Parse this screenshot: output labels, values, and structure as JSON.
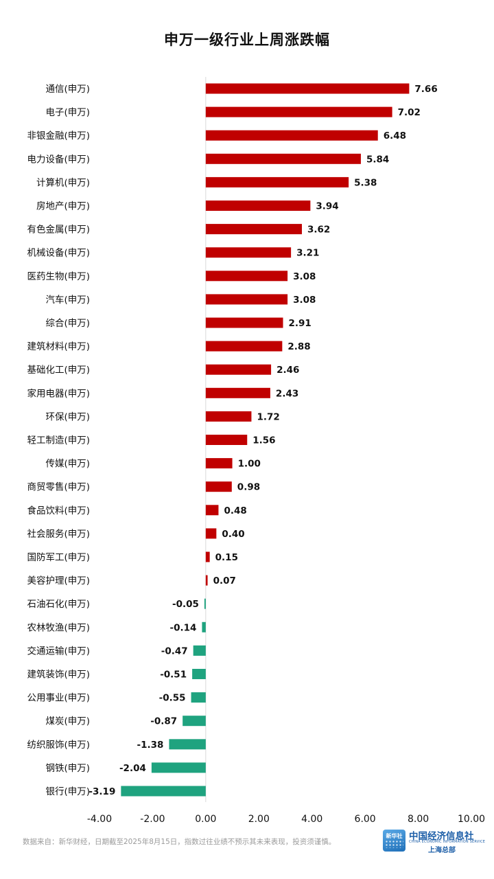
{
  "chart_data": {
    "type": "bar",
    "orientation": "horizontal",
    "title": "申万一级行业上周涨跌幅",
    "categories": [
      "通信(申万)",
      "电子(申万)",
      "非银金融(申万)",
      "电力设备(申万)",
      "计算机(申万)",
      "房地产(申万)",
      "有色金属(申万)",
      "机械设备(申万)",
      "医药生物(申万)",
      "汽车(申万)",
      "综合(申万)",
      "建筑材料(申万)",
      "基础化工(申万)",
      "家用电器(申万)",
      "环保(申万)",
      "轻工制造(申万)",
      "传媒(申万)",
      "商贸零售(申万)",
      "食品饮料(申万)",
      "社会服务(申万)",
      "国防军工(申万)",
      "美容护理(申万)",
      "石油石化(申万)",
      "农林牧渔(申万)",
      "交通运输(申万)",
      "建筑装饰(申万)",
      "公用事业(申万)",
      "煤炭(申万)",
      "纺织服饰(申万)",
      "钢铁(申万)",
      "银行(申万)"
    ],
    "values": [
      7.66,
      7.02,
      6.48,
      5.84,
      5.38,
      3.94,
      3.62,
      3.21,
      3.08,
      3.08,
      2.91,
      2.88,
      2.46,
      2.43,
      1.72,
      1.56,
      1.0,
      0.98,
      0.48,
      0.4,
      0.15,
      0.07,
      -0.05,
      -0.14,
      -0.47,
      -0.51,
      -0.55,
      -0.87,
      -1.38,
      -2.04,
      -3.19
    ],
    "value_labels": [
      "7.66",
      "7.02",
      "6.48",
      "5.84",
      "5.38",
      "3.94",
      "3.62",
      "3.21",
      "3.08",
      "3.08",
      "2.91",
      "2.88",
      "2.46",
      "2.43",
      "1.72",
      "1.56",
      "1.00",
      "0.98",
      "0.48",
      "0.40",
      "0.15",
      "0.07",
      "-0.05",
      "-0.14",
      "-0.47",
      "-0.51",
      "-0.55",
      "-0.87",
      "-1.38",
      "-2.04",
      "-3.19"
    ],
    "xlim": [
      -4,
      10
    ],
    "xticks": [
      "-4.00",
      "-2.00",
      "0.00",
      "2.00",
      "4.00",
      "6.00",
      "8.00",
      "10.00"
    ],
    "xtick_values": [
      -4,
      -2,
      0,
      2,
      4,
      6,
      8,
      10
    ],
    "grid": false,
    "colors": {
      "positive": "#c00000",
      "negative": "#1fa37f"
    }
  },
  "footer": {
    "note": "数据来自：新华财经，日期截至2025年8月15日，指数过往业绩不预示其未来表现，投资须谨慎。"
  },
  "logo": {
    "xinhua_text": "新华社",
    "cei_cn": "中国经济信息社",
    "cei_en": "CHINA ECONOMIC INFORMATION SERVICE",
    "cei_sub": "上海总部"
  }
}
